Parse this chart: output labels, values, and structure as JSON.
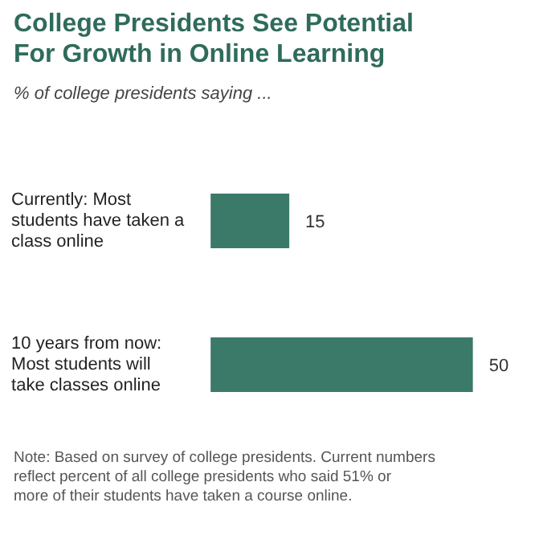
{
  "chart_data": {
    "type": "bar",
    "orientation": "horizontal",
    "title": "College Presidents See Potential For Growth in Online Learning",
    "subtitle": "% of college presidents saying ...",
    "categories": [
      "Currently: Most students have taken a class online",
      "10 years from now: Most students will take classes online"
    ],
    "values": [
      15,
      50
    ],
    "color": "#3b7a69",
    "data_labels": true,
    "grid": false,
    "annotations": [
      "Note: Based on survey of college presidents. Current numbers reflect percent of all college presidents who said 51% or more of their students have taken a course online."
    ]
  }
}
